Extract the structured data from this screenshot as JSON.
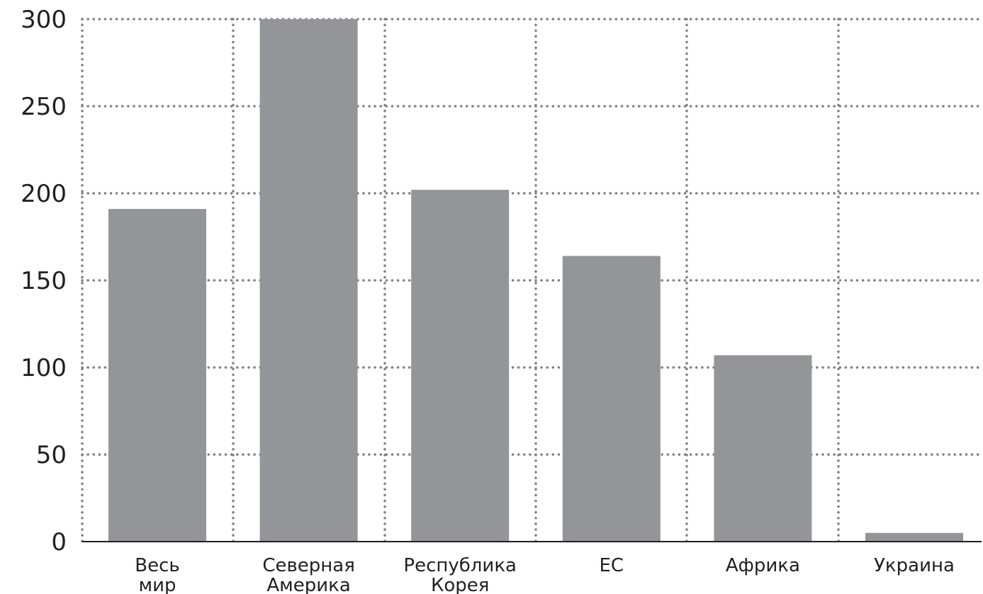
{
  "chart_data": {
    "type": "bar",
    "categories": [
      [
        "Весь",
        "мир"
      ],
      [
        "Северная",
        "Америка"
      ],
      [
        "Республика",
        "Корея"
      ],
      [
        "ЕС"
      ],
      [
        "Африка"
      ],
      [
        "Украина"
      ]
    ],
    "values": [
      191,
      300,
      202,
      164,
      107,
      5
    ],
    "ylim": [
      0,
      300
    ],
    "yticks": [
      "0",
      "50",
      "100",
      "150",
      "200",
      "250",
      "300"
    ],
    "title": "",
    "xlabel": "",
    "ylabel": "",
    "grid": "dotted",
    "legend": "none",
    "colors": {
      "bar": "#939598",
      "grid": "#808080",
      "axis": "#231f20",
      "text": "#231f20"
    }
  }
}
